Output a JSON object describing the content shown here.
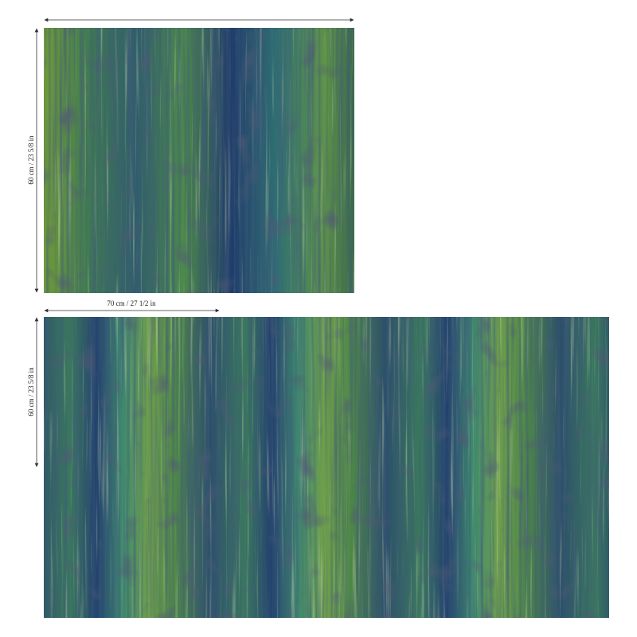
{
  "panel": {
    "height_label": "60 cm / 23 5/8 in"
  },
  "repeat": {
    "width_label": "70 cm / 27 1/2 in",
    "height_label": "60 cm / 23 5/8 in"
  }
}
